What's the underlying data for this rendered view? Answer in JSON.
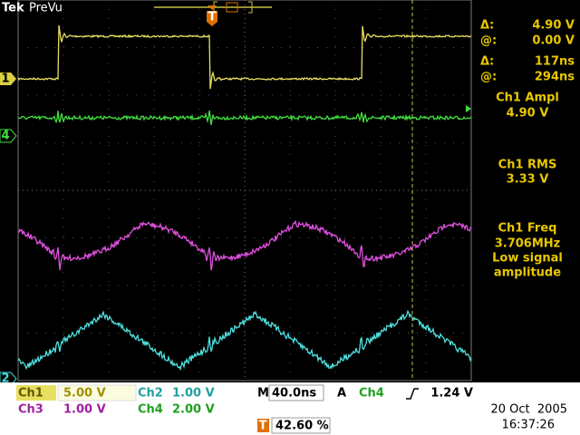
{
  "header": {
    "brand": "Tek",
    "mode": "PreVu"
  },
  "channel_markers": {
    "ch1": "1",
    "ch4": "4",
    "ch2": "2",
    "trigger": "T"
  },
  "readouts": [
    {
      "label": "Δ:",
      "value": "4.90 V"
    },
    {
      "label": "@:",
      "value": "0.00 V"
    },
    {
      "label": "Δ:",
      "value": "117ns"
    },
    {
      "label": "@:",
      "value": "294ns"
    }
  ],
  "measurements": [
    {
      "title": "Ch1 Ampl",
      "lines": [
        "4.90 V"
      ]
    },
    {
      "title": "Ch1 RMS",
      "lines": [
        "3.33 V"
      ]
    },
    {
      "title": "Ch1 Freq",
      "lines": [
        "3.706MHz",
        "Low signal",
        "amplitude"
      ]
    }
  ],
  "status": {
    "ch1": {
      "label": "Ch1",
      "scale": "5.00 V"
    },
    "ch2": {
      "label": "Ch2",
      "scale": "1.00 V"
    },
    "ch3": {
      "label": "Ch3",
      "scale": "1.00 V"
    },
    "ch4": {
      "label": "Ch4",
      "scale": "2.00 V"
    },
    "timebase": {
      "label": "M",
      "value": "40.0ns"
    },
    "trigger": {
      "mode": "A",
      "source": "Ch4",
      "level": "1.24 V"
    },
    "trigger_position": {
      "icon": "T",
      "value": "42.60 %"
    },
    "date": "20 Oct  2005",
    "time": "16:37:26"
  }
}
